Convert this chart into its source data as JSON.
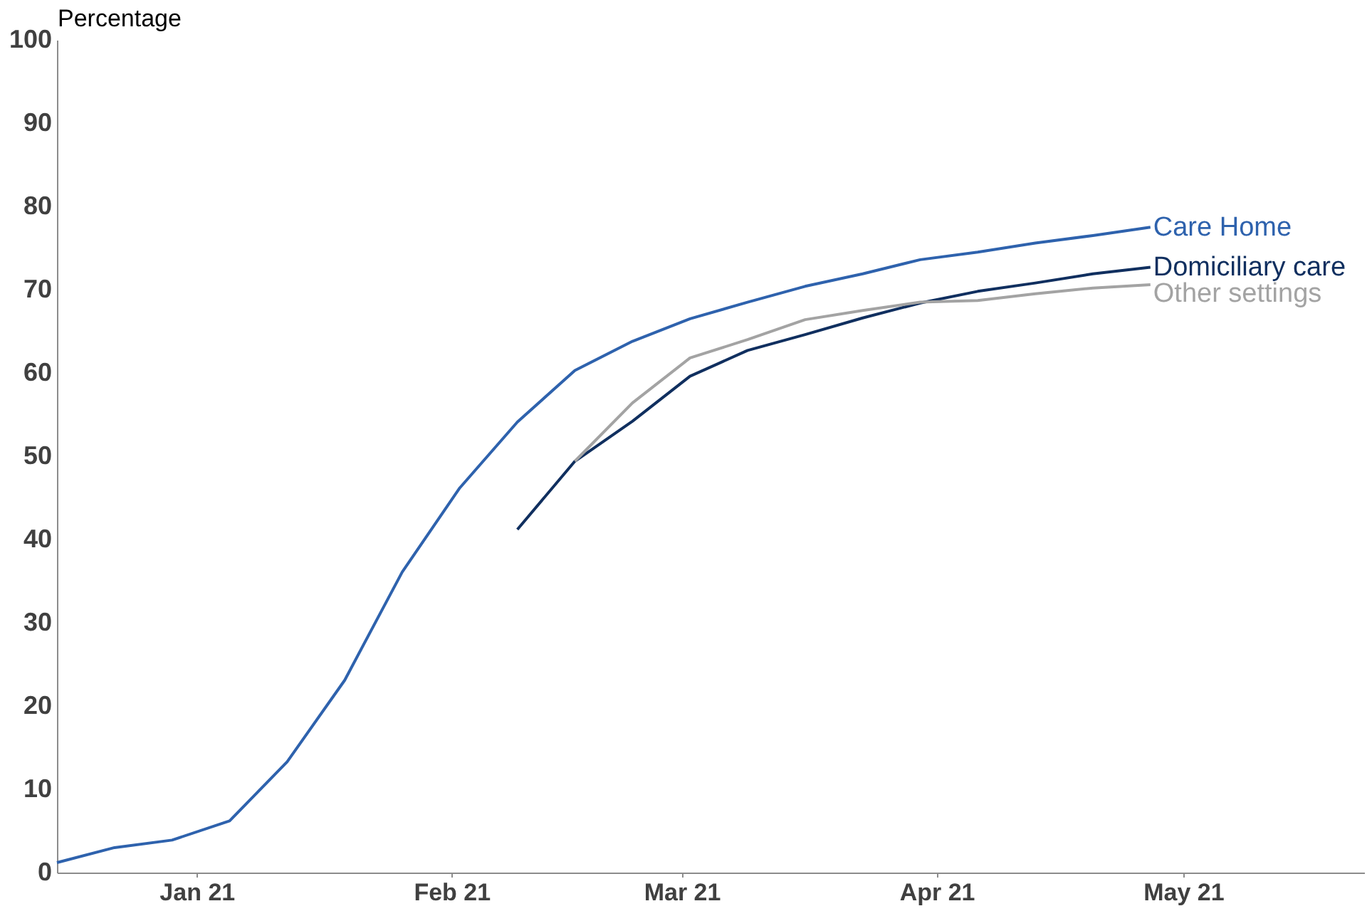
{
  "chart_data": {
    "type": "line",
    "ylabel": "Percentage",
    "x": [
      "2020-12-15",
      "2020-12-22",
      "2020-12-29",
      "2021-01-05",
      "2021-01-12",
      "2021-01-19",
      "2021-01-26",
      "2021-02-02",
      "2021-02-09",
      "2021-02-16",
      "2021-02-23",
      "2021-03-02",
      "2021-03-09",
      "2021-03-16",
      "2021-03-23",
      "2021-03-30",
      "2021-04-06",
      "2021-04-13",
      "2021-04-20",
      "2021-04-27"
    ],
    "series": [
      {
        "name": "Care Home",
        "color": "#2e62ad",
        "values": [
          1.2,
          3.0,
          3.9,
          6.2,
          13.3,
          23.1,
          36.1,
          46.2,
          54.1,
          60.3,
          63.8,
          66.5,
          68.5,
          70.4,
          71.9,
          73.6,
          74.5,
          75.6,
          76.5,
          77.5
        ]
      },
      {
        "name": "Domiciliary care",
        "color": "#102f5f",
        "values": [
          null,
          null,
          null,
          null,
          null,
          null,
          null,
          null,
          41.2,
          49.4,
          54.2,
          59.6,
          62.7,
          64.6,
          66.6,
          68.4,
          69.8,
          70.8,
          71.9,
          72.7
        ]
      },
      {
        "name": "Other settings",
        "color": "#a3a3a3",
        "values": [
          null,
          null,
          null,
          null,
          null,
          null,
          null,
          null,
          null,
          49.4,
          56.4,
          61.8,
          64.0,
          66.4,
          67.5,
          68.5,
          68.7,
          69.5,
          70.2,
          70.6
        ]
      }
    ],
    "xlim": [
      "2020-12-15",
      "2021-05-23"
    ],
    "xticks": [
      {
        "value": "2021-01-01",
        "label": "Jan 21"
      },
      {
        "value": "2021-02-01",
        "label": "Feb 21"
      },
      {
        "value": "2021-03-01",
        "label": "Mar 21"
      },
      {
        "value": "2021-04-01",
        "label": "Apr 21"
      },
      {
        "value": "2021-05-01",
        "label": "May 21"
      }
    ],
    "ylim": [
      0,
      100
    ],
    "yticks": [
      0,
      10,
      20,
      30,
      40,
      50,
      60,
      70,
      80,
      90,
      100
    ],
    "line_style": "solid"
  }
}
